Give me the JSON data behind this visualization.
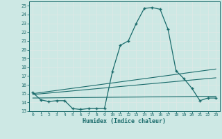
{
  "title": "",
  "xlabel": "Humidex (Indice chaleur)",
  "bg_color": "#cde8e4",
  "grid_color": "#b0d8d2",
  "line_color": "#1a6b6b",
  "xlim": [
    -0.5,
    23.5
  ],
  "ylim": [
    13,
    25.5
  ],
  "yticks": [
    13,
    14,
    15,
    16,
    17,
    18,
    19,
    20,
    21,
    22,
    23,
    24,
    25
  ],
  "xticks": [
    0,
    1,
    2,
    3,
    4,
    5,
    6,
    7,
    8,
    9,
    10,
    11,
    12,
    13,
    14,
    15,
    16,
    17,
    18,
    19,
    20,
    21,
    22,
    23
  ],
  "main_x": [
    0,
    1,
    2,
    3,
    4,
    5,
    6,
    7,
    8,
    9,
    10,
    11,
    12,
    13,
    14,
    15,
    16,
    17,
    18,
    19,
    20,
    21,
    22,
    23
  ],
  "main_y": [
    15.1,
    14.3,
    14.1,
    14.2,
    14.2,
    13.3,
    13.2,
    13.3,
    13.3,
    13.3,
    17.5,
    20.5,
    21.0,
    23.0,
    24.7,
    24.8,
    24.6,
    22.3,
    17.6,
    16.7,
    15.6,
    14.2,
    14.5,
    14.5
  ],
  "line1_x": [
    0,
    23
  ],
  "line1_y": [
    15.0,
    17.8
  ],
  "line2_x": [
    0,
    23
  ],
  "line2_y": [
    14.9,
    16.8
  ],
  "line3_x": [
    0,
    23
  ],
  "line3_y": [
    14.5,
    14.7
  ]
}
